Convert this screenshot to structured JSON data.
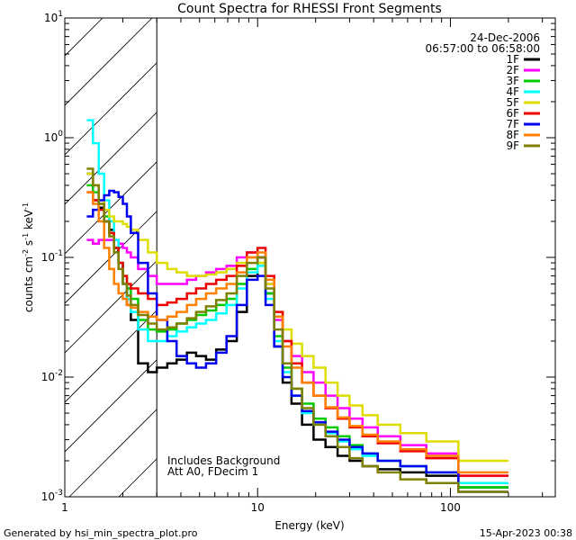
{
  "chart_data": {
    "type": "line",
    "title": "Count Spectra for RHESSI Front Segments",
    "xlabel": "Energy (keV)",
    "ylabel": "counts cm",
    "ylabel_sup1": "-2",
    "ylabel_mid": " s",
    "ylabel_sup2": "-1",
    "ylabel_end": " keV",
    "ylabel_sup3": "-1",
    "x_scale": "log",
    "y_scale": "log",
    "xlim": [
      1,
      350
    ],
    "ylim": [
      0.001,
      10
    ],
    "x_ticks": [
      {
        "v": 1,
        "label": "1"
      },
      {
        "v": 10,
        "label": "10"
      },
      {
        "v": 100,
        "label": "100"
      }
    ],
    "y_ticks": [
      {
        "v": 0.001,
        "base": "10",
        "exp": "-3"
      },
      {
        "v": 0.01,
        "base": "10",
        "exp": "-2"
      },
      {
        "v": 0.1,
        "base": "10",
        "exp": "-1"
      },
      {
        "v": 1,
        "base": "10",
        "exp": "0"
      },
      {
        "v": 10,
        "base": "10",
        "exp": "1"
      }
    ],
    "date": "24-Dec-2006",
    "time_range": "06:57:00 to 06:58:00",
    "shaded_region_below_keV": 3,
    "annotations": [
      "Includes Background",
      "Att A0, FDecim 1"
    ],
    "series": [
      {
        "name": "1F",
        "color": "#000000",
        "values": [
          0.5,
          0.3,
          0.26,
          0.2,
          0.17,
          0.12,
          0.09,
          0.06,
          0.04,
          0.03,
          0.013,
          0.011,
          0.012,
          0.013,
          0.014,
          0.016,
          0.015,
          0.014,
          0.017,
          0.02,
          0.035,
          0.07,
          0.1,
          0.05,
          0.018,
          0.009,
          0.006,
          0.004,
          0.003,
          0.0026,
          0.0022,
          0.002,
          0.0018,
          0.0017,
          0.0016,
          0.0015,
          0.0012
        ]
      },
      {
        "name": "2F",
        "color": "#ff00ff",
        "values": [
          0.14,
          0.13,
          0.14,
          0.14,
          0.14,
          0.14,
          0.13,
          0.12,
          0.11,
          0.1,
          0.08,
          0.07,
          0.06,
          0.06,
          0.06,
          0.065,
          0.07,
          0.075,
          0.08,
          0.085,
          0.1,
          0.11,
          0.1,
          0.06,
          0.03,
          0.02,
          0.015,
          0.011,
          0.009,
          0.007,
          0.0055,
          0.0045,
          0.0038,
          0.0032,
          0.0027,
          0.0023,
          0.0015
        ]
      },
      {
        "name": "3F",
        "color": "#00cc00",
        "values": [
          0.4,
          0.35,
          0.28,
          0.22,
          0.16,
          0.12,
          0.09,
          0.07,
          0.055,
          0.045,
          0.03,
          0.025,
          0.024,
          0.025,
          0.028,
          0.03,
          0.033,
          0.036,
          0.04,
          0.045,
          0.06,
          0.08,
          0.09,
          0.05,
          0.022,
          0.012,
          0.008,
          0.006,
          0.0045,
          0.0038,
          0.0032,
          0.0027,
          0.0023,
          0.002,
          0.0018,
          0.0016,
          0.0012
        ]
      },
      {
        "name": "4F",
        "color": "#00ffff",
        "values": [
          1.4,
          0.9,
          0.5,
          0.3,
          0.2,
          0.14,
          0.09,
          0.06,
          0.045,
          0.035,
          0.025,
          0.02,
          0.02,
          0.022,
          0.024,
          0.026,
          0.028,
          0.03,
          0.034,
          0.04,
          0.055,
          0.075,
          0.085,
          0.045,
          0.02,
          0.011,
          0.007,
          0.005,
          0.004,
          0.0034,
          0.0029,
          0.0025,
          0.0022,
          0.002,
          0.0018,
          0.0016,
          0.0013
        ]
      },
      {
        "name": "5F",
        "color": "#dddd00",
        "values": [
          0.5,
          0.4,
          0.3,
          0.25,
          0.22,
          0.2,
          0.2,
          0.19,
          0.18,
          0.17,
          0.14,
          0.11,
          0.09,
          0.08,
          0.075,
          0.07,
          0.07,
          0.072,
          0.075,
          0.08,
          0.09,
          0.1,
          0.09,
          0.06,
          0.035,
          0.025,
          0.019,
          0.015,
          0.012,
          0.009,
          0.007,
          0.0058,
          0.0048,
          0.004,
          0.0034,
          0.0029,
          0.002
        ]
      },
      {
        "name": "6F",
        "color": "#ee0000",
        "values": [
          0.35,
          0.3,
          0.25,
          0.2,
          0.16,
          0.12,
          0.09,
          0.07,
          0.06,
          0.055,
          0.05,
          0.045,
          0.04,
          0.042,
          0.045,
          0.05,
          0.055,
          0.06,
          0.065,
          0.07,
          0.085,
          0.11,
          0.12,
          0.07,
          0.035,
          0.02,
          0.013,
          0.009,
          0.007,
          0.0055,
          0.0045,
          0.0038,
          0.0032,
          0.0028,
          0.0024,
          0.0021,
          0.0015
        ]
      },
      {
        "name": "7F",
        "color": "#0000ee",
        "values": [
          0.22,
          0.25,
          0.3,
          0.33,
          0.36,
          0.35,
          0.32,
          0.28,
          0.22,
          0.16,
          0.09,
          0.05,
          0.03,
          0.02,
          0.015,
          0.013,
          0.012,
          0.013,
          0.016,
          0.022,
          0.04,
          0.065,
          0.07,
          0.04,
          0.018,
          0.01,
          0.007,
          0.0052,
          0.0042,
          0.0035,
          0.003,
          0.0026,
          0.0023,
          0.002,
          0.0018,
          0.0016,
          0.0011
        ]
      },
      {
        "name": "8F",
        "color": "#ff8000",
        "values": [
          0.35,
          0.28,
          0.2,
          0.12,
          0.08,
          0.06,
          0.05,
          0.045,
          0.04,
          0.038,
          0.035,
          0.032,
          0.03,
          0.032,
          0.035,
          0.04,
          0.045,
          0.05,
          0.055,
          0.06,
          0.075,
          0.1,
          0.11,
          0.065,
          0.032,
          0.018,
          0.012,
          0.009,
          0.007,
          0.0056,
          0.0046,
          0.0039,
          0.0033,
          0.0029,
          0.0025,
          0.0022,
          0.0016
        ]
      },
      {
        "name": "9F",
        "color": "#808000",
        "values": [
          0.55,
          0.4,
          0.28,
          0.2,
          0.15,
          0.11,
          0.08,
          0.06,
          0.048,
          0.04,
          0.033,
          0.028,
          0.025,
          0.026,
          0.028,
          0.031,
          0.035,
          0.039,
          0.044,
          0.05,
          0.07,
          0.09,
          0.1,
          0.055,
          0.025,
          0.013,
          0.008,
          0.0055,
          0.004,
          0.0032,
          0.0026,
          0.0021,
          0.0018,
          0.0016,
          0.0014,
          0.0013,
          0.0011
        ]
      }
    ],
    "energy_edges_keV": [
      1.3,
      1.4,
      1.5,
      1.6,
      1.7,
      1.8,
      1.9,
      2.0,
      2.1,
      2.2,
      2.4,
      2.7,
      3.0,
      3.4,
      3.8,
      4.3,
      4.8,
      5.4,
      6.1,
      6.9,
      7.8,
      8.8,
      10.0,
      11.0,
      12.2,
      13.5,
      15.0,
      17.0,
      19.5,
      22.5,
      26.0,
      30.0,
      35.0,
      42.0,
      55.0,
      75.0,
      110.0,
      200.0
    ]
  },
  "footer": {
    "left": "Generated by hsi_min_spectra_plot.pro",
    "right": "15-Apr-2023 00:38"
  }
}
